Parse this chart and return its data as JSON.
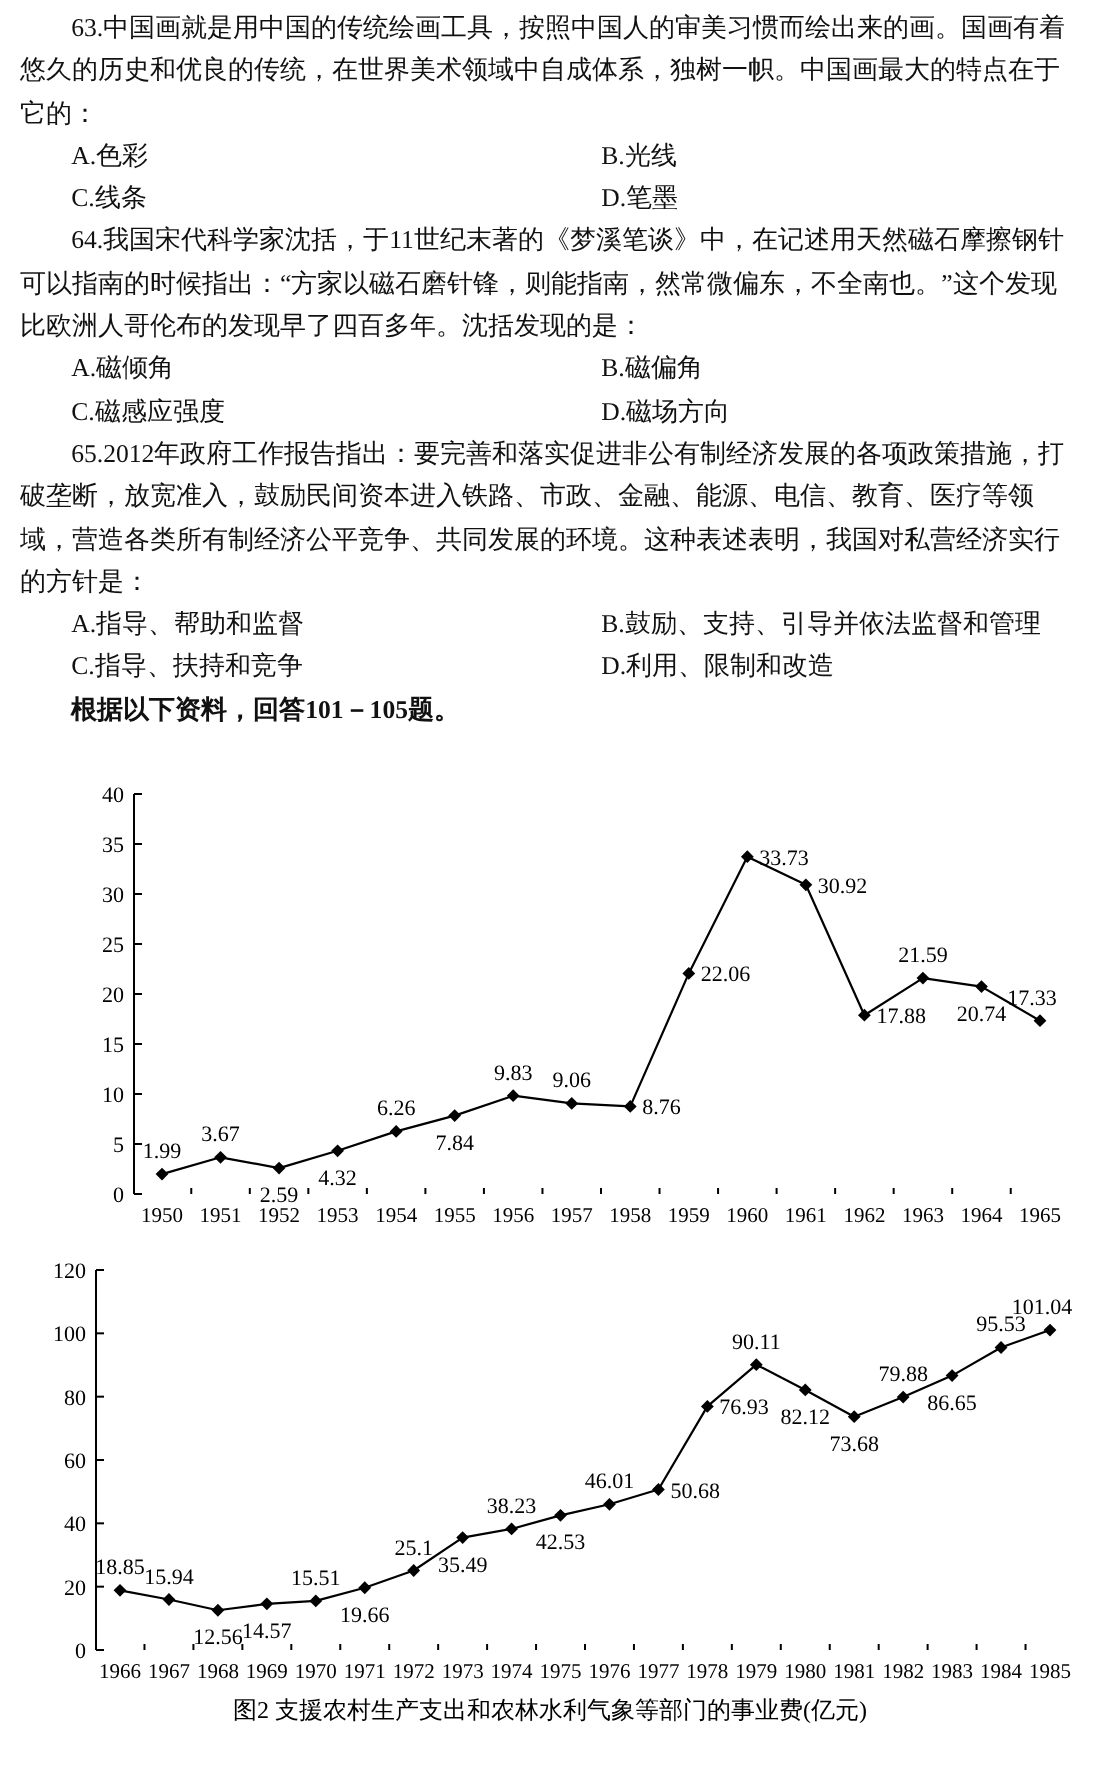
{
  "chart_data": [
    {
      "type": "line",
      "categories": [
        "1950",
        "1951",
        "1952",
        "1953",
        "1954",
        "1955",
        "1956",
        "1957",
        "1958",
        "1959",
        "1960",
        "1961",
        "1962",
        "1963",
        "1964",
        "1965"
      ],
      "series": [
        {
          "color": "#000000",
          "values": [
            1.99,
            3.67,
            2.59,
            4.32,
            6.26,
            7.84,
            9.83,
            9.06,
            8.76,
            22.06,
            33.73,
            30.92,
            17.88,
            21.59,
            20.74,
            17.33
          ]
        }
      ],
      "ylim": [
        0,
        40
      ],
      "yticks": [
        0,
        5,
        10,
        15,
        20,
        25,
        30,
        35,
        40
      ],
      "data_labels": true,
      "marker": "diamond",
      "annotations": [
        "63.中国画就是用中国的传统绘画工具，按照中国人的审美习惯而绘出来的画。国画有着悠久的历史和优良的传统，在世界美术领域中自成体系，独树一帜。中国画最大的特点在于它的：",
        "A.色彩",
        "B.光线",
        "C.线条",
        "D.笔墨",
        "64.我国宋代科学家沈括，于11世纪末著的《梦溪笔谈》中，在记述用天然磁石摩擦钢针可以指南的时候指出：“方家以磁石磨针锋，则能指南，然常微偏东，不全南也。”这个发现比欧洲人哥伦布的发现早了四百多年。沈括发现的是：",
        "A.磁倾角",
        "B.磁偏角",
        "C.磁感应强度",
        "D.磁场方向",
        "65.2012年政府工作报告指出：要完善和落实促进非公有制经济发展的各项政策措施，打破垄断，放宽准入，鼓励民间资本进入铁路、市政、金融、能源、电信、教育、医疗等领域，营造各类所有制经济公平竞争、共同发展的环境。这种表述表明，我国对私营经济实行的方针是：",
        "A.指导、帮助和监督",
        "B.鼓励、支持、引导并依法监督和管理",
        "C.指导、扶持和竞争",
        "D.利用、限制和改造",
        "根据以下资料，回答101－105题。"
      ]
    },
    {
      "type": "line",
      "title": "图2 支援农村生产支出和农林水利气象等部门的事业费(亿元)",
      "categories": [
        "1966",
        "1967",
        "1968",
        "1969",
        "1970",
        "1971",
        "1972",
        "1973",
        "1974",
        "1975",
        "1976",
        "1977",
        "1978",
        "1979",
        "1980",
        "1981",
        "1982",
        "1983",
        "1984",
        "1985"
      ],
      "series": [
        {
          "color": "#000000",
          "values": [
            18.85,
            15.94,
            12.56,
            14.57,
            15.51,
            19.66,
            25.1,
            35.49,
            38.23,
            42.53,
            46.01,
            50.68,
            76.93,
            90.11,
            82.12,
            73.68,
            79.88,
            86.65,
            95.53,
            101.04
          ]
        }
      ],
      "ylim": [
        0,
        120
      ],
      "yticks": [
        0,
        20,
        40,
        60,
        80,
        100,
        120
      ],
      "data_labels": true,
      "marker": "diamond"
    }
  ]
}
